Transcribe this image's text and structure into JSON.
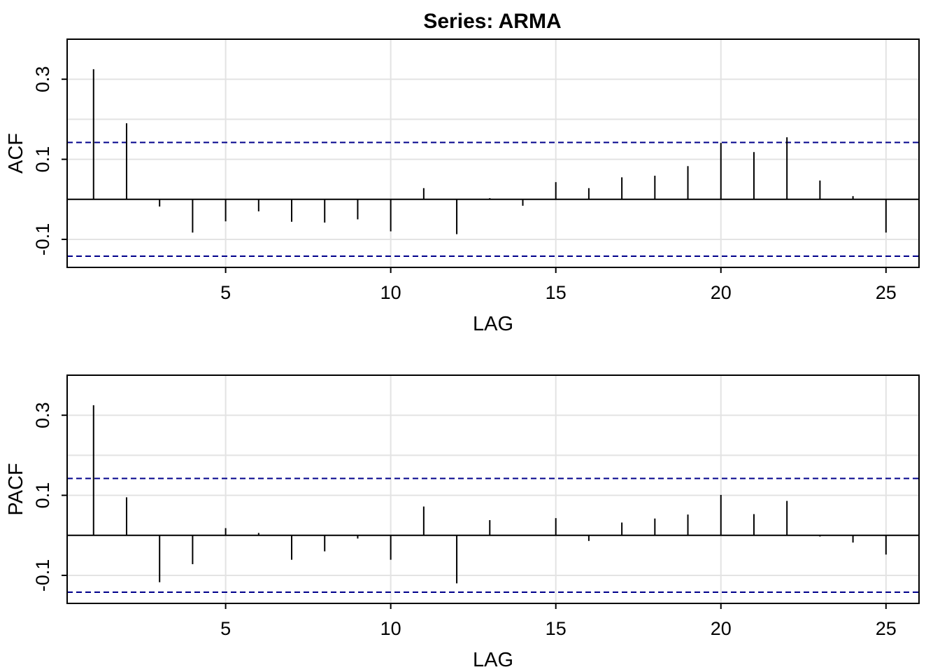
{
  "chart_data": [
    {
      "type": "bar",
      "title": "Series:  ARMA",
      "xlabel": "LAG",
      "ylabel": "ACF",
      "xlim": [
        0.2,
        26
      ],
      "ylim": [
        -0.17,
        0.4
      ],
      "xticks": [
        5,
        10,
        15,
        20,
        25
      ],
      "xtick_labels": [
        "5",
        "10",
        "15",
        "20",
        "25"
      ],
      "yticks": [
        0.3,
        0.1,
        -0.1
      ],
      "ytick_labels": [
        "0.3",
        "0.1",
        "-0.1"
      ],
      "ygrid": [
        -0.1,
        0,
        0.1,
        0.2,
        0.3,
        0.4
      ],
      "grid": true,
      "confidence_bounds": [
        0.142,
        -0.142
      ],
      "confidence_color": "#00008b",
      "x": [
        1,
        2,
        3,
        4,
        5,
        6,
        7,
        8,
        9,
        10,
        11,
        12,
        13,
        14,
        15,
        16,
        17,
        18,
        19,
        20,
        21,
        22,
        23,
        24,
        25
      ],
      "values": [
        0.325,
        0.19,
        -0.018,
        -0.083,
        -0.055,
        -0.03,
        -0.056,
        -0.058,
        -0.05,
        -0.08,
        0.028,
        -0.087,
        0.003,
        -0.016,
        0.043,
        0.028,
        0.055,
        0.059,
        0.083,
        0.141,
        0.118,
        0.155,
        0.047,
        0.008,
        -0.083
      ]
    },
    {
      "type": "bar",
      "title": "",
      "xlabel": "LAG",
      "ylabel": "PACF",
      "xlim": [
        0.2,
        26
      ],
      "ylim": [
        -0.17,
        0.4
      ],
      "xticks": [
        5,
        10,
        15,
        20,
        25
      ],
      "xtick_labels": [
        "5",
        "10",
        "15",
        "20",
        "25"
      ],
      "yticks": [
        0.3,
        0.1,
        -0.1
      ],
      "ytick_labels": [
        "0.3",
        "0.1",
        "-0.1"
      ],
      "ygrid": [
        -0.1,
        0,
        0.1,
        0.2,
        0.3,
        0.4
      ],
      "grid": true,
      "confidence_bounds": [
        0.142,
        -0.142
      ],
      "confidence_color": "#00008b",
      "x": [
        1,
        2,
        3,
        4,
        5,
        6,
        7,
        8,
        9,
        10,
        11,
        12,
        13,
        14,
        15,
        16,
        17,
        18,
        19,
        20,
        21,
        22,
        23,
        24,
        25
      ],
      "values": [
        0.325,
        0.095,
        -0.117,
        -0.072,
        0.018,
        0.006,
        -0.061,
        -0.04,
        -0.008,
        -0.061,
        0.072,
        -0.12,
        0.038,
        0.001,
        0.043,
        -0.014,
        0.032,
        0.042,
        0.052,
        0.101,
        0.053,
        0.086,
        -0.003,
        -0.018,
        -0.048
      ]
    }
  ]
}
